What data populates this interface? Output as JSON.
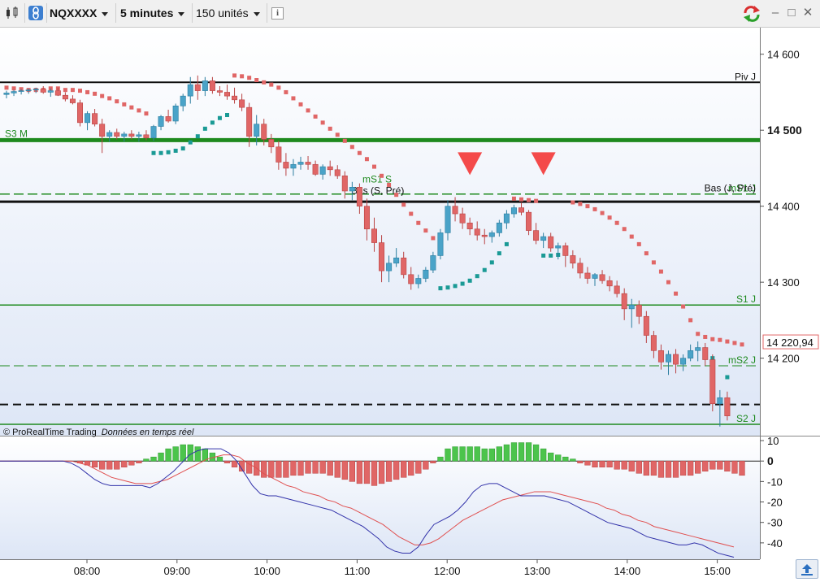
{
  "toolbar": {
    "symbol": "NQXXXX",
    "timeframe": "5 minutes",
    "units": "150 unités",
    "info_icon": "i"
  },
  "credit": {
    "brand": "© ProRealTime Trading",
    "status": "Données en temps réel"
  },
  "colors": {
    "bull": "#4aa3c8",
    "bear": "#e06666",
    "sar_up": "#1a9a95",
    "sar_down": "#e06666",
    "green_level": "#1e8a1e",
    "hist_pos": "#4cc44c",
    "hist_neg": "#e06666",
    "line_blue": "#3333aa",
    "line_red": "#e05050"
  },
  "chart_data": {
    "type": "candlestick",
    "y_axis": {
      "ticks": [
        14600,
        14500,
        14400,
        14300,
        14200
      ],
      "bold_tick": 14500,
      "range": [
        14098,
        14635
      ]
    },
    "x_axis": {
      "ticks": [
        "08:00",
        "09:00",
        "10:00",
        "11:00",
        "12:00",
        "13:00",
        "14:00",
        "15:00"
      ]
    },
    "last_price": "14 220,94",
    "levels": [
      {
        "name": "Piv J",
        "value": 14563,
        "style": "solid",
        "color": "#111111",
        "width": 2
      },
      {
        "name": "S3 M",
        "value": 14487,
        "style": "solid",
        "color": "#1e8a1e",
        "width": 5
      },
      {
        "name": "mS1 J",
        "value": 14416,
        "style": "dashed",
        "color": "#1e8a1e",
        "width": 1.5
      },
      {
        "name": "Bas (J, Pré)",
        "value": 14416,
        "style": "none",
        "color": "#111111",
        "width": 0
      },
      {
        "name": "",
        "value": 14406,
        "style": "solid",
        "color": "#111111",
        "width": 3
      },
      {
        "name": "S1 J",
        "value": 14270,
        "style": "solid",
        "color": "#1e8a1e",
        "width": 1.5
      },
      {
        "name": "mS2 J",
        "value": 14190,
        "style": "dashed",
        "color": "#1e8a1e",
        "width": 1
      },
      {
        "name": "",
        "value": 14139,
        "style": "dashed",
        "color": "#111111",
        "width": 2
      },
      {
        "name": "S2 J",
        "value": 14113,
        "style": "solid",
        "color": "#1e8a1e",
        "width": 1.5
      }
    ],
    "level_annotations": [
      {
        "text": "mS1 S",
        "value": 14428,
        "color": "#1e8a1e"
      },
      {
        "text": "Bas (S, Pré)",
        "value": 14416,
        "color": "#111111"
      }
    ],
    "candles": [
      [
        14547,
        14552,
        14542,
        14549
      ],
      [
        14549,
        14553,
        14545,
        14551
      ],
      [
        14551,
        14554,
        14547,
        14552
      ],
      [
        14552,
        14555,
        14548,
        14553
      ],
      [
        14553,
        14556,
        14549,
        14554
      ],
      [
        14554,
        14558,
        14548,
        14550
      ],
      [
        14550,
        14555,
        14544,
        14552
      ],
      [
        14552,
        14556,
        14545,
        14546
      ],
      [
        14546,
        14550,
        14538,
        14541
      ],
      [
        14541,
        14546,
        14534,
        14536
      ],
      [
        14536,
        14540,
        14505,
        14510
      ],
      [
        14510,
        14525,
        14500,
        14522
      ],
      [
        14522,
        14528,
        14505,
        14508
      ],
      [
        14508,
        14515,
        14470,
        14492
      ],
      [
        14492,
        14500,
        14485,
        14497
      ],
      [
        14497,
        14502,
        14488,
        14492
      ],
      [
        14492,
        14498,
        14485,
        14495
      ],
      [
        14495,
        14500,
        14488,
        14492
      ],
      [
        14492,
        14498,
        14485,
        14494
      ],
      [
        14494,
        14500,
        14487,
        14490
      ],
      [
        14490,
        14507,
        14486,
        14505
      ],
      [
        14505,
        14520,
        14500,
        14518
      ],
      [
        14518,
        14527,
        14510,
        14512
      ],
      [
        14512,
        14535,
        14508,
        14532
      ],
      [
        14532,
        14548,
        14525,
        14545
      ],
      [
        14545,
        14570,
        14535,
        14560
      ],
      [
        14560,
        14572,
        14540,
        14552
      ],
      [
        14552,
        14570,
        14545,
        14565
      ],
      [
        14565,
        14570,
        14548,
        14552
      ],
      [
        14552,
        14558,
        14545,
        14550
      ],
      [
        14550,
        14560,
        14540,
        14545
      ],
      [
        14545,
        14556,
        14535,
        14540
      ],
      [
        14540,
        14548,
        14525,
        14530
      ],
      [
        14530,
        14536,
        14478,
        14492
      ],
      [
        14492,
        14520,
        14480,
        14508
      ],
      [
        14508,
        14515,
        14480,
        14488
      ],
      [
        14488,
        14495,
        14470,
        14478
      ],
      [
        14478,
        14486,
        14448,
        14458
      ],
      [
        14458,
        14470,
        14440,
        14450
      ],
      [
        14450,
        14462,
        14440,
        14455
      ],
      [
        14455,
        14465,
        14448,
        14458
      ],
      [
        14458,
        14466,
        14448,
        14455
      ],
      [
        14455,
        14460,
        14440,
        14442
      ],
      [
        14442,
        14455,
        14435,
        14452
      ],
      [
        14452,
        14460,
        14440,
        14448
      ],
      [
        14448,
        14454,
        14436,
        14440
      ],
      [
        14440,
        14446,
        14410,
        14420
      ],
      [
        14420,
        14432,
        14408,
        14425
      ],
      [
        14425,
        14430,
        14390,
        14400
      ],
      [
        14400,
        14410,
        14355,
        14370
      ],
      [
        14370,
        14385,
        14340,
        14352
      ],
      [
        14352,
        14362,
        14300,
        14315
      ],
      [
        14315,
        14335,
        14300,
        14325
      ],
      [
        14325,
        14345,
        14320,
        14332
      ],
      [
        14332,
        14340,
        14305,
        14310
      ],
      [
        14310,
        14320,
        14290,
        14298
      ],
      [
        14298,
        14310,
        14292,
        14305
      ],
      [
        14305,
        14320,
        14300,
        14316
      ],
      [
        14316,
        14340,
        14312,
        14335
      ],
      [
        14335,
        14370,
        14330,
        14365
      ],
      [
        14365,
        14408,
        14355,
        14400
      ],
      [
        14400,
        14412,
        14380,
        14390
      ],
      [
        14390,
        14398,
        14370,
        14378
      ],
      [
        14378,
        14385,
        14362,
        14370
      ],
      [
        14370,
        14380,
        14355,
        14362
      ],
      [
        14362,
        14370,
        14350,
        14360
      ],
      [
        14360,
        14368,
        14352,
        14365
      ],
      [
        14365,
        14382,
        14360,
        14378
      ],
      [
        14378,
        14395,
        14370,
        14390
      ],
      [
        14390,
        14402,
        14385,
        14398
      ],
      [
        14398,
        14405,
        14388,
        14392
      ],
      [
        14392,
        14395,
        14362,
        14368
      ],
      [
        14368,
        14378,
        14350,
        14355
      ],
      [
        14355,
        14365,
        14345,
        14360
      ],
      [
        14360,
        14365,
        14340,
        14345
      ],
      [
        14345,
        14352,
        14330,
        14348
      ],
      [
        14348,
        14352,
        14320,
        14335
      ],
      [
        14335,
        14342,
        14318,
        14325
      ],
      [
        14325,
        14332,
        14305,
        14312
      ],
      [
        14312,
        14320,
        14298,
        14305
      ],
      [
        14305,
        14312,
        14295,
        14310
      ],
      [
        14310,
        14316,
        14298,
        14302
      ],
      [
        14302,
        14308,
        14288,
        14295
      ],
      [
        14295,
        14302,
        14280,
        14285
      ],
      [
        14285,
        14292,
        14250,
        14265
      ],
      [
        14265,
        14278,
        14240,
        14270
      ],
      [
        14270,
        14276,
        14245,
        14255
      ],
      [
        14255,
        14262,
        14220,
        14230
      ],
      [
        14230,
        14236,
        14200,
        14210
      ],
      [
        14210,
        14218,
        14185,
        14195
      ],
      [
        14195,
        14210,
        14178,
        14205
      ],
      [
        14205,
        14212,
        14180,
        14192
      ],
      [
        14192,
        14205,
        14183,
        14200
      ],
      [
        14200,
        14218,
        14196,
        14210
      ],
      [
        14210,
        14222,
        14196,
        14214
      ],
      [
        14214,
        14220,
        14190,
        14198
      ],
      [
        14198,
        14205,
        14130,
        14140
      ],
      [
        14140,
        14158,
        14110,
        14148
      ],
      [
        14148,
        14156,
        14118,
        14124
      ]
    ],
    "sar": [
      [
        0,
        14556,
        "d"
      ],
      [
        1,
        14555,
        "d"
      ],
      [
        2,
        14554,
        "d"
      ],
      [
        3,
        14553,
        "d"
      ],
      [
        4,
        14553,
        "d"
      ],
      [
        5,
        14553,
        "d"
      ],
      [
        6,
        14555,
        "d"
      ],
      [
        7,
        14555,
        "d"
      ],
      [
        8,
        14553,
        "d"
      ],
      [
        9,
        14553,
        "d"
      ],
      [
        10,
        14552,
        "d"
      ],
      [
        11,
        14550,
        "d"
      ],
      [
        12,
        14548,
        "d"
      ],
      [
        13,
        14545,
        "d"
      ],
      [
        14,
        14542,
        "d"
      ],
      [
        15,
        14538,
        "d"
      ],
      [
        16,
        14534,
        "d"
      ],
      [
        17,
        14530,
        "d"
      ],
      [
        18,
        14526,
        "d"
      ],
      [
        19,
        14522,
        "d"
      ],
      [
        20,
        14470,
        "u"
      ],
      [
        21,
        14470,
        "u"
      ],
      [
        22,
        14471,
        "u"
      ],
      [
        23,
        14473,
        "u"
      ],
      [
        24,
        14476,
        "u"
      ],
      [
        25,
        14484,
        "u"
      ],
      [
        26,
        14492,
        "u"
      ],
      [
        27,
        14502,
        "u"
      ],
      [
        28,
        14510,
        "u"
      ],
      [
        29,
        14516,
        "u"
      ],
      [
        30,
        14520,
        "u"
      ],
      [
        31,
        14572,
        "d"
      ],
      [
        32,
        14571,
        "d"
      ],
      [
        33,
        14569,
        "d"
      ],
      [
        34,
        14566,
        "d"
      ],
      [
        35,
        14563,
        "d"
      ],
      [
        36,
        14560,
        "d"
      ],
      [
        37,
        14556,
        "d"
      ],
      [
        38,
        14550,
        "d"
      ],
      [
        39,
        14542,
        "d"
      ],
      [
        40,
        14534,
        "d"
      ],
      [
        41,
        14526,
        "d"
      ],
      [
        42,
        14518,
        "d"
      ],
      [
        43,
        14510,
        "d"
      ],
      [
        44,
        14502,
        "d"
      ],
      [
        45,
        14494,
        "d"
      ],
      [
        46,
        14486,
        "d"
      ],
      [
        47,
        14478,
        "d"
      ],
      [
        48,
        14470,
        "d"
      ],
      [
        49,
        14462,
        "d"
      ],
      [
        50,
        14452,
        "d"
      ],
      [
        51,
        14440,
        "d"
      ],
      [
        52,
        14428,
        "d"
      ],
      [
        53,
        14415,
        "d"
      ],
      [
        54,
        14402,
        "d"
      ],
      [
        55,
        14390,
        "d"
      ],
      [
        56,
        14378,
        "d"
      ],
      [
        57,
        14368,
        "d"
      ],
      [
        58,
        14358,
        "d"
      ],
      [
        59,
        14292,
        "u"
      ],
      [
        60,
        14293,
        "u"
      ],
      [
        61,
        14295,
        "u"
      ],
      [
        62,
        14298,
        "u"
      ],
      [
        63,
        14302,
        "u"
      ],
      [
        64,
        14308,
        "u"
      ],
      [
        65,
        14316,
        "u"
      ],
      [
        66,
        14326,
        "u"
      ],
      [
        67,
        14338,
        "u"
      ],
      [
        68,
        14350,
        "u"
      ],
      [
        69,
        14410,
        "d"
      ],
      [
        70,
        14409,
        "d"
      ],
      [
        71,
        14408,
        "d"
      ],
      [
        72,
        14407,
        "d"
      ],
      [
        73,
        14335,
        "u"
      ],
      [
        74,
        14335,
        "u"
      ],
      [
        75,
        14336,
        "u"
      ],
      [
        76,
        14338,
        "u"
      ],
      [
        77,
        14405,
        "d"
      ],
      [
        78,
        14403,
        "d"
      ],
      [
        79,
        14400,
        "d"
      ],
      [
        80,
        14396,
        "d"
      ],
      [
        81,
        14391,
        "d"
      ],
      [
        82,
        14385,
        "d"
      ],
      [
        83,
        14378,
        "d"
      ],
      [
        84,
        14370,
        "d"
      ],
      [
        85,
        14360,
        "d"
      ],
      [
        86,
        14350,
        "d"
      ],
      [
        87,
        14338,
        "d"
      ],
      [
        88,
        14326,
        "d"
      ],
      [
        89,
        14314,
        "d"
      ],
      [
        90,
        14300,
        "d"
      ],
      [
        91,
        14285,
        "d"
      ],
      [
        92,
        14268,
        "d"
      ],
      [
        93,
        14250,
        "d"
      ],
      [
        94,
        14232,
        "d"
      ],
      [
        95,
        14228,
        "d"
      ],
      [
        96,
        14225,
        "d"
      ],
      [
        97,
        14224,
        "d"
      ],
      [
        98,
        14222,
        "d"
      ],
      [
        99,
        14220,
        "d"
      ],
      [
        100,
        14218,
        "d"
      ],
      [
        96,
        14200,
        "u"
      ],
      [
        98,
        14175,
        "u"
      ]
    ],
    "signals": [
      {
        "index": 63,
        "value": 14456
      },
      {
        "index": 73,
        "value": 14456
      }
    ],
    "oscillator": {
      "y_ticks": [
        10,
        0,
        -10,
        -20,
        -30,
        -40
      ],
      "range": [
        -48,
        12
      ],
      "histogram": [
        0,
        0,
        0,
        0,
        0,
        0,
        0,
        0,
        0,
        0,
        -1,
        -2,
        -3,
        -4,
        -4,
        -4,
        -3,
        -2,
        -1,
        1,
        2,
        4,
        6,
        7,
        8,
        8,
        7,
        6,
        4,
        2,
        -1,
        -3,
        -5,
        -6,
        -7,
        -8,
        -8,
        -8,
        -8,
        -7,
        -7,
        -6,
        -6,
        -6,
        -7,
        -8,
        -9,
        -10,
        -11,
        -11,
        -12,
        -11,
        -10,
        -9,
        -8,
        -7,
        -6,
        -4,
        -1,
        2,
        6,
        7,
        7,
        7,
        7,
        6,
        6,
        7,
        8,
        9,
        9,
        9,
        8,
        6,
        4,
        3,
        2,
        1,
        -1,
        -2,
        -3,
        -3,
        -3,
        -4,
        -4,
        -5,
        -6,
        -7,
        -7,
        -8,
        -8,
        -8,
        -7,
        -7,
        -6,
        -5,
        -4,
        -4,
        -5,
        -6,
        -7
      ],
      "blue": [
        0,
        0,
        0,
        0,
        0,
        0,
        0,
        0,
        0,
        -1,
        -3,
        -6,
        -9,
        -11,
        -12,
        -12,
        -12,
        -12,
        -12,
        -13,
        -11,
        -8,
        -5,
        -1,
        3,
        5,
        6,
        6,
        6,
        4,
        0,
        -6,
        -12,
        -16,
        -17,
        -17,
        -18,
        -19,
        -20,
        -21,
        -22,
        -23,
        -24,
        -26,
        -28,
        -30,
        -32,
        -35,
        -38,
        -42,
        -44,
        -45,
        -45,
        -42,
        -36,
        -31,
        -29,
        -27,
        -24,
        -20,
        -15,
        -12,
        -11,
        -11,
        -13,
        -15,
        -17,
        -17,
        -17,
        -17,
        -18,
        -19,
        -20,
        -22,
        -24,
        -26,
        -28,
        -30,
        -31,
        -32,
        -33,
        -35,
        -37,
        -38,
        -39,
        -40,
        -41,
        -41,
        -40,
        -41,
        -43,
        -45,
        -46,
        -47
      ],
      "red": [
        0,
        0,
        0,
        0,
        0,
        0,
        0,
        0,
        0,
        0,
        -1,
        -2,
        -4,
        -6,
        -8,
        -9,
        -10,
        -11,
        -11,
        -11,
        -10,
        -9,
        -7,
        -5,
        -3,
        -1,
        1,
        2,
        3,
        3,
        2,
        -1,
        -3,
        -6,
        -8,
        -10,
        -12,
        -13,
        -15,
        -16,
        -17,
        -19,
        -20,
        -22,
        -23,
        -25,
        -27,
        -29,
        -31,
        -34,
        -37,
        -39,
        -41,
        -41,
        -40,
        -38,
        -35,
        -32,
        -29,
        -27,
        -25,
        -23,
        -21,
        -19,
        -18,
        -17,
        -16,
        -15,
        -15,
        -15,
        -16,
        -17,
        -18,
        -19,
        -20,
        -21,
        -23,
        -24,
        -26,
        -27,
        -29,
        -30,
        -32,
        -33,
        -34,
        -35,
        -36,
        -37,
        -38,
        -39,
        -40,
        -41,
        -42
      ]
    }
  }
}
